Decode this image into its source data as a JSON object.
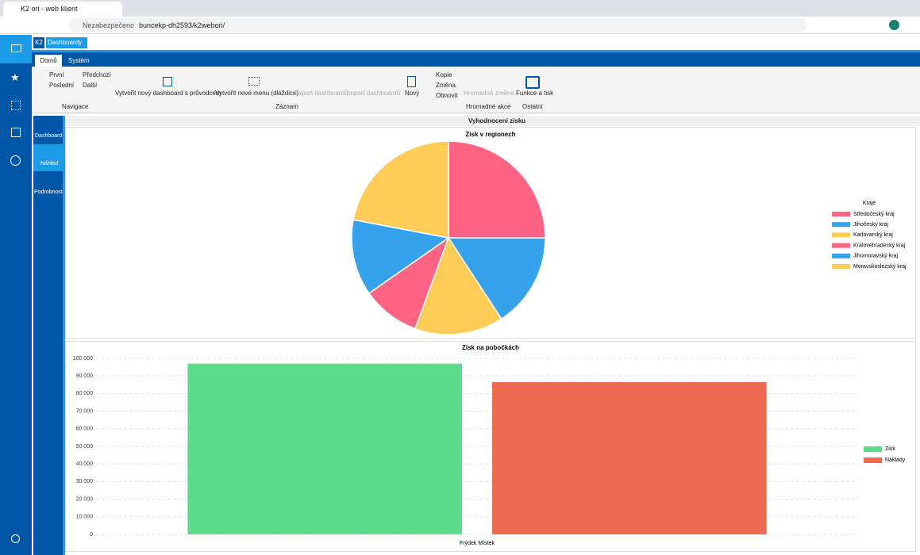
{
  "browser": {
    "tab_title": "K2 ori - web klient",
    "security": "Nezabezpečeno",
    "url": "buncekp-dh2593/k2webori/"
  },
  "app": {
    "logo": "K2",
    "doc_tab": "Dashboardy"
  },
  "ribbon": {
    "tabs": [
      "Domů",
      "Systém"
    ],
    "nav": [
      "První",
      "Předchozí",
      "Poslední",
      "Další"
    ],
    "buttons": [
      "Vytvořit nový dashboard s průvodcem",
      "Vytvořit nové menu (dlaždice)",
      "Export dashboardů",
      "Import dashboardů",
      "Nový",
      "Kopie",
      "Změna",
      "Obnovit",
      "Hromadná změna",
      "Funkce a tisk"
    ],
    "groups": [
      "Navigace",
      "Záznam",
      "Hromadné akce",
      "Ostatní"
    ]
  },
  "side_nav": [
    "Dashboard",
    "Náhled",
    "Podrobnosti"
  ],
  "page_title": "Vyhodnocení zisku",
  "chart_data": [
    {
      "type": "pie",
      "title": "Zisk v regionech",
      "legend_title": "Kraje",
      "legend": "right",
      "categories": [
        "Středočeský kraj",
        "Jihočeský kraj",
        "Karlovarský kraj",
        "Královéhradecký kraj",
        "Jihomoravský kraj",
        "Moravskoslezský kraj"
      ],
      "values": [
        25,
        15.8,
        14.8,
        9.7,
        12.7,
        22
      ],
      "colors": [
        "#ff6384",
        "#36a2eb",
        "#ffcd56",
        "#ff6384",
        "#36a2eb",
        "#ffcd56"
      ]
    },
    {
      "type": "bar",
      "title": "Zisk na pobočkách",
      "legend": "right",
      "grid": true,
      "categories": [
        "Frýdek Místek"
      ],
      "series": [
        {
          "name": "Zisk",
          "color": "#5cdb8d",
          "values": [
            97000
          ]
        },
        {
          "name": "Náklady",
          "color": "#ee6b52",
          "values": [
            86500
          ]
        }
      ],
      "ylim": [
        0,
        100000
      ],
      "yticks": [
        0,
        {
          "value": 10000,
          "label": "10 000"
        },
        {
          "value": 20000,
          "label": "20 000"
        },
        {
          "value": 30000,
          "label": "30 000"
        },
        {
          "value": 40000,
          "label": "40 000"
        },
        {
          "value": 50000,
          "label": "50 000"
        },
        {
          "value": 60000,
          "label": "60 000"
        },
        {
          "value": 70000,
          "label": "70 000"
        },
        {
          "value": 80000,
          "label": "80 000"
        },
        {
          "value": 90000,
          "label": "90 000"
        },
        {
          "value": 100000,
          "label": "100 000"
        }
      ]
    }
  ]
}
